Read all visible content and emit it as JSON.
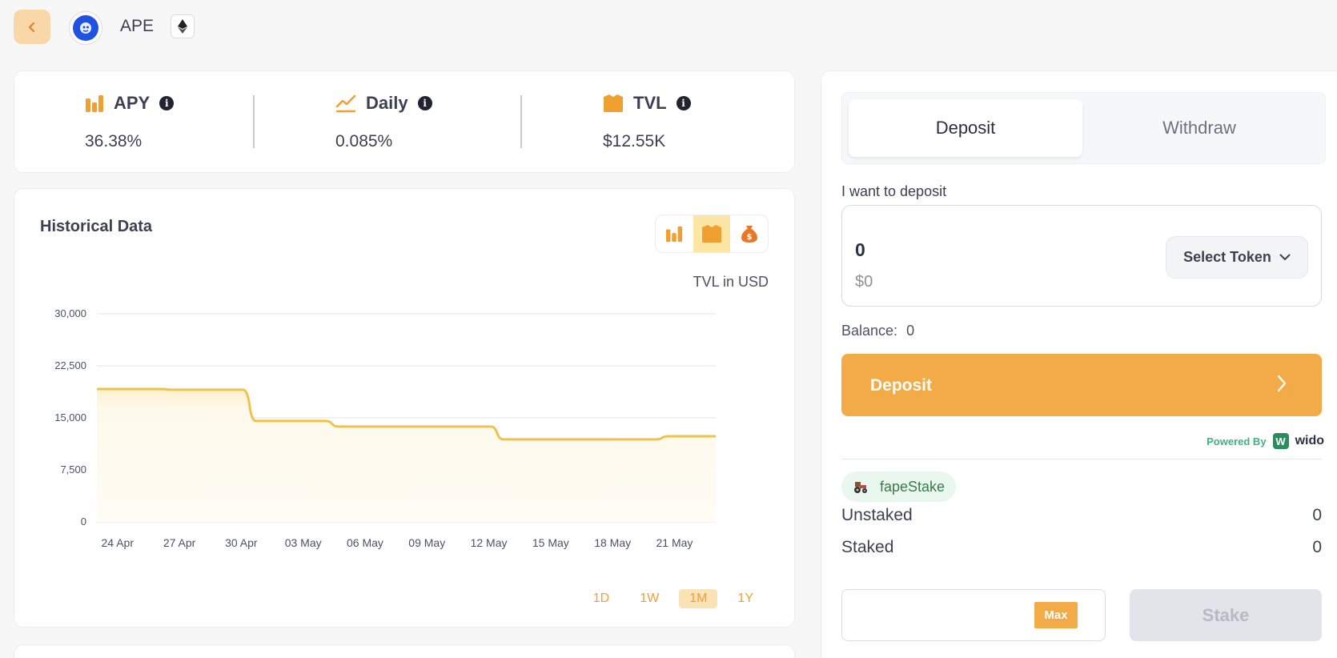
{
  "header": {
    "token_name": "APE"
  },
  "stats": [
    {
      "label": "APY",
      "value": "36.38%"
    },
    {
      "label": "Daily",
      "value": "0.085%"
    },
    {
      "label": "TVL",
      "value": "$12.55K"
    }
  ],
  "historical": {
    "title": "Historical Data",
    "unit_label": "TVL in USD",
    "ranges": [
      "1D",
      "1W",
      "1M",
      "1Y"
    ],
    "active_range": "1M",
    "active_chart_option": "tvl"
  },
  "chart_data": {
    "type": "area",
    "ylim": [
      0,
      30000
    ],
    "yticks": [
      "30,000",
      "22,500",
      "15,000",
      "7,500",
      "0"
    ],
    "ytick_values": [
      30000,
      22500,
      15000,
      7500,
      0
    ],
    "xticks": [
      "24 Apr",
      "27 Apr",
      "30 Apr",
      "03 May",
      "06 May",
      "09 May",
      "12 May",
      "15 May",
      "18 May",
      "21 May"
    ],
    "x": [
      "23 Apr",
      "24 Apr",
      "25 Apr",
      "26 Apr",
      "27 Apr",
      "28 Apr",
      "29 Apr",
      "30 Apr",
      "01 May",
      "02 May",
      "03 May",
      "04 May",
      "05 May",
      "06 May",
      "07 May",
      "08 May",
      "09 May",
      "10 May",
      "11 May",
      "12 May",
      "13 May",
      "14 May",
      "15 May",
      "16 May",
      "17 May",
      "18 May",
      "19 May",
      "20 May",
      "21 May",
      "22 May",
      "23 May"
    ],
    "values": [
      19150,
      19150,
      19150,
      19150,
      19050,
      19050,
      19050,
      19050,
      14550,
      14550,
      14550,
      14550,
      13750,
      13750,
      13750,
      13750,
      13750,
      13750,
      13750,
      13750,
      11900,
      11900,
      11900,
      11900,
      11900,
      11900,
      11900,
      11900,
      12350,
      12350,
      12350
    ],
    "line_color": "#f0c24a",
    "fill_color": "#fef9ec"
  },
  "form": {
    "tabs": {
      "deposit": "Deposit",
      "withdraw": "Withdraw"
    },
    "deposit_label": "I want to deposit",
    "amount": "0",
    "amount_usd": "$0",
    "select_token": "Select Token",
    "balance_label": "Balance:",
    "balance_value": "0",
    "deposit_button": "Deposit",
    "powered_by": "Powered By",
    "provider": "wido",
    "stake_token": "fapeStake",
    "unstaked_label": "Unstaked",
    "unstaked_value": "0",
    "staked_label": "Staked",
    "staked_value": "0",
    "stake_amount": "",
    "max_label": "Max",
    "stake_button": "Stake"
  },
  "colors": {
    "accent": "#f2ab46",
    "icon": "#f0a030",
    "text": "#3b4152"
  }
}
